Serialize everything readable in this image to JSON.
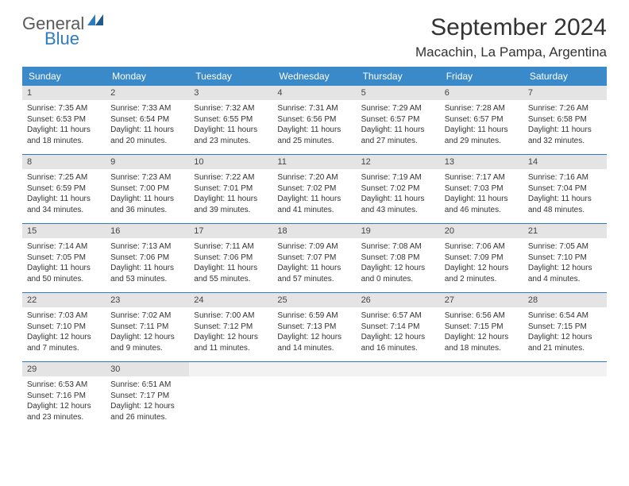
{
  "logo": {
    "line1": "General",
    "line2": "Blue"
  },
  "title": "September 2024",
  "location": "Macachin, La Pampa, Argentina",
  "header_color": "#3a89c9",
  "day_headers": [
    "Sunday",
    "Monday",
    "Tuesday",
    "Wednesday",
    "Thursday",
    "Friday",
    "Saturday"
  ],
  "weeks": [
    [
      {
        "n": "1",
        "sr": "7:35 AM",
        "ss": "6:53 PM",
        "dl": "11 hours and 18 minutes."
      },
      {
        "n": "2",
        "sr": "7:33 AM",
        "ss": "6:54 PM",
        "dl": "11 hours and 20 minutes."
      },
      {
        "n": "3",
        "sr": "7:32 AM",
        "ss": "6:55 PM",
        "dl": "11 hours and 23 minutes."
      },
      {
        "n": "4",
        "sr": "7:31 AM",
        "ss": "6:56 PM",
        "dl": "11 hours and 25 minutes."
      },
      {
        "n": "5",
        "sr": "7:29 AM",
        "ss": "6:57 PM",
        "dl": "11 hours and 27 minutes."
      },
      {
        "n": "6",
        "sr": "7:28 AM",
        "ss": "6:57 PM",
        "dl": "11 hours and 29 minutes."
      },
      {
        "n": "7",
        "sr": "7:26 AM",
        "ss": "6:58 PM",
        "dl": "11 hours and 32 minutes."
      }
    ],
    [
      {
        "n": "8",
        "sr": "7:25 AM",
        "ss": "6:59 PM",
        "dl": "11 hours and 34 minutes."
      },
      {
        "n": "9",
        "sr": "7:23 AM",
        "ss": "7:00 PM",
        "dl": "11 hours and 36 minutes."
      },
      {
        "n": "10",
        "sr": "7:22 AM",
        "ss": "7:01 PM",
        "dl": "11 hours and 39 minutes."
      },
      {
        "n": "11",
        "sr": "7:20 AM",
        "ss": "7:02 PM",
        "dl": "11 hours and 41 minutes."
      },
      {
        "n": "12",
        "sr": "7:19 AM",
        "ss": "7:02 PM",
        "dl": "11 hours and 43 minutes."
      },
      {
        "n": "13",
        "sr": "7:17 AM",
        "ss": "7:03 PM",
        "dl": "11 hours and 46 minutes."
      },
      {
        "n": "14",
        "sr": "7:16 AM",
        "ss": "7:04 PM",
        "dl": "11 hours and 48 minutes."
      }
    ],
    [
      {
        "n": "15",
        "sr": "7:14 AM",
        "ss": "7:05 PM",
        "dl": "11 hours and 50 minutes."
      },
      {
        "n": "16",
        "sr": "7:13 AM",
        "ss": "7:06 PM",
        "dl": "11 hours and 53 minutes."
      },
      {
        "n": "17",
        "sr": "7:11 AM",
        "ss": "7:06 PM",
        "dl": "11 hours and 55 minutes."
      },
      {
        "n": "18",
        "sr": "7:09 AM",
        "ss": "7:07 PM",
        "dl": "11 hours and 57 minutes."
      },
      {
        "n": "19",
        "sr": "7:08 AM",
        "ss": "7:08 PM",
        "dl": "12 hours and 0 minutes."
      },
      {
        "n": "20",
        "sr": "7:06 AM",
        "ss": "7:09 PM",
        "dl": "12 hours and 2 minutes."
      },
      {
        "n": "21",
        "sr": "7:05 AM",
        "ss": "7:10 PM",
        "dl": "12 hours and 4 minutes."
      }
    ],
    [
      {
        "n": "22",
        "sr": "7:03 AM",
        "ss": "7:10 PM",
        "dl": "12 hours and 7 minutes."
      },
      {
        "n": "23",
        "sr": "7:02 AM",
        "ss": "7:11 PM",
        "dl": "12 hours and 9 minutes."
      },
      {
        "n": "24",
        "sr": "7:00 AM",
        "ss": "7:12 PM",
        "dl": "12 hours and 11 minutes."
      },
      {
        "n": "25",
        "sr": "6:59 AM",
        "ss": "7:13 PM",
        "dl": "12 hours and 14 minutes."
      },
      {
        "n": "26",
        "sr": "6:57 AM",
        "ss": "7:14 PM",
        "dl": "12 hours and 16 minutes."
      },
      {
        "n": "27",
        "sr": "6:56 AM",
        "ss": "7:15 PM",
        "dl": "12 hours and 18 minutes."
      },
      {
        "n": "28",
        "sr": "6:54 AM",
        "ss": "7:15 PM",
        "dl": "12 hours and 21 minutes."
      }
    ],
    [
      {
        "n": "29",
        "sr": "6:53 AM",
        "ss": "7:16 PM",
        "dl": "12 hours and 23 minutes."
      },
      {
        "n": "30",
        "sr": "6:51 AM",
        "ss": "7:17 PM",
        "dl": "12 hours and 26 minutes."
      },
      {
        "empty": true
      },
      {
        "empty": true
      },
      {
        "empty": true
      },
      {
        "empty": true
      },
      {
        "empty": true
      }
    ]
  ],
  "labels": {
    "sunrise": "Sunrise: ",
    "sunset": "Sunset: ",
    "daylight": "Daylight: "
  }
}
